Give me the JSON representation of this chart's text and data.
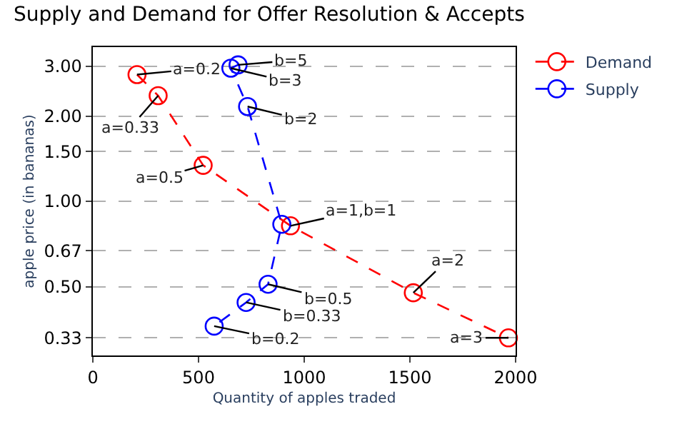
{
  "chart_data": {
    "type": "line",
    "title": "Supply and Demand for Offer Resolution & Accepts",
    "xlabel": "Quantity of apples traded",
    "ylabel": "apple price (in bananas)",
    "series": [
      {
        "name": "Demand",
        "color": "#ff0000",
        "x": [
          209,
          309,
          522,
          935,
          1516,
          1966
        ],
        "values": [
          2.8,
          2.36,
          1.34,
          0.82,
          0.476,
          0.33
        ]
      },
      {
        "name": "Supply",
        "color": "#0000ff",
        "x": [
          687,
          653,
          732,
          894,
          829,
          725,
          574
        ],
        "values": [
          3.03,
          2.95,
          2.16,
          0.83,
          0.51,
          0.44,
          0.363
        ]
      }
    ],
    "xlim": [
      0,
      2000
    ],
    "xticks": [
      0,
      500,
      1000,
      1500,
      2000
    ],
    "ylim": [
      0.286,
      3.5
    ],
    "log": "y",
    "yticks": [
      {
        "value": 0.33,
        "label": "0.33"
      },
      {
        "value": 0.5,
        "label": "0.50"
      },
      {
        "value": 0.67,
        "label": "0.67"
      },
      {
        "value": 1,
        "label": "1.00"
      },
      {
        "value": 1.5,
        "label": "1.50"
      },
      {
        "value": 2,
        "label": "2.00"
      },
      {
        "value": 3,
        "label": "3.00"
      }
    ],
    "grid": "y",
    "legend": "top right",
    "marker": "circle",
    "line_style": "dashed",
    "annotations": [
      {
        "text": "a=0.2",
        "x": 209,
        "y": 2.8
      },
      {
        "text": "a=0.33",
        "x": 309,
        "y": 2.36
      },
      {
        "text": "a=0.5",
        "x": 522,
        "y": 1.34
      },
      {
        "text": "a=1,b=1",
        "x": 935,
        "y": 0.82
      },
      {
        "text": "a=2",
        "x": 1516,
        "y": 0.476
      },
      {
        "text": "a=3",
        "x": 1966,
        "y": 0.33
      },
      {
        "text": "b=5",
        "x": 687,
        "y": 3.03
      },
      {
        "text": "b=3",
        "x": 653,
        "y": 2.95
      },
      {
        "text": "b=2",
        "x": 732,
        "y": 2.16
      },
      {
        "text": "b=0.5",
        "x": 829,
        "y": 0.51
      },
      {
        "text": "b=0.33",
        "x": 725,
        "y": 0.44
      },
      {
        "text": "b=0.2",
        "x": 574,
        "y": 0.363
      }
    ]
  }
}
